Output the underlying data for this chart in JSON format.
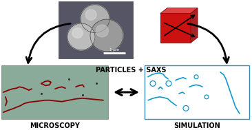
{
  "bg_color": "#ffffff",
  "particles_saxs_label": "PARTICLES + SAXS",
  "microscopy_label": "MICROSCOPY",
  "simulation_label": "SIMULATION",
  "scale_bar_label": "1 μm",
  "micro_bg": "#8aab9a",
  "sim_bg": "#ffffff",
  "sim_border": "#3a8ab8",
  "cube_color_front": "#cc1111",
  "cube_color_top": "#dd4444",
  "cube_color_right": "#aa2222",
  "cube_outline_color": "#aabbdd",
  "arrow_blue": "#1133bb",
  "chain_color_micro": "#880000",
  "chain_color_sim": "#1199cc",
  "label_fontsize": 7,
  "label_fontweight": "bold",
  "sem_bg": "#555566",
  "sphere_colors": [
    "#aaaaaa",
    "#999999",
    "#b8b8b8"
  ],
  "sphere_highlights": [
    "#dddddd",
    "#cccccc",
    "#e8e8e8"
  ]
}
